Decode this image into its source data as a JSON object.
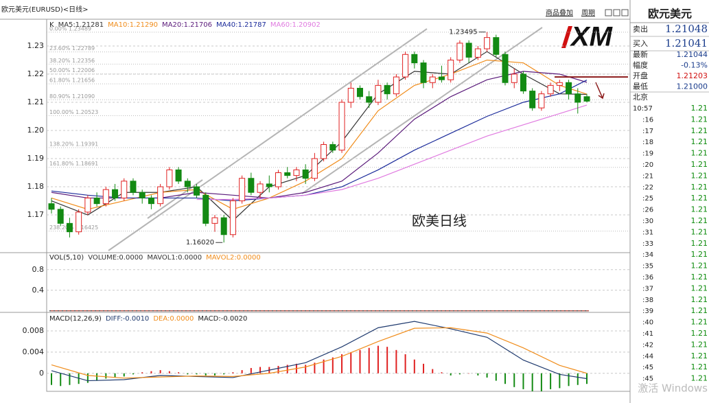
{
  "header": {
    "title": "欧元美元(EURUSD)<日线>",
    "buttons": [
      "商品叠加",
      "周期"
    ]
  },
  "logo": "XM",
  "chart_data": [
    {
      "type": "candlestick",
      "legend_label": "K",
      "ylim": [
        1.1566,
        1.2395
      ],
      "yticks": [
        1.17,
        1.18,
        1.19,
        {
          "value": 1.2,
          "label": "1.20"
        },
        1.21,
        1.22,
        1.23
      ],
      "colors": {
        "up": "#e02020",
        "down": "#138a13"
      },
      "candles": [
        [
          1.174,
          1.176,
          1.1705,
          1.172
        ],
        [
          1.172,
          1.173,
          1.166,
          1.167
        ],
        [
          1.167,
          1.169,
          1.162,
          1.164
        ],
        [
          1.164,
          1.172,
          1.163,
          1.171
        ],
        [
          1.171,
          1.177,
          1.17,
          1.176
        ],
        [
          1.176,
          1.178,
          1.173,
          1.174
        ],
        [
          1.174,
          1.18,
          1.173,
          1.179
        ],
        [
          1.179,
          1.181,
          1.175,
          1.176
        ],
        [
          1.176,
          1.183,
          1.175,
          1.182
        ],
        [
          1.182,
          1.183,
          1.177,
          1.178
        ],
        [
          1.178,
          1.179,
          1.174,
          1.176
        ],
        [
          1.176,
          1.177,
          1.172,
          1.174
        ],
        [
          1.174,
          1.181,
          1.173,
          1.18
        ],
        [
          1.18,
          1.187,
          1.179,
          1.186
        ],
        [
          1.186,
          1.187,
          1.181,
          1.182
        ],
        [
          1.182,
          1.183,
          1.178,
          1.18
        ],
        [
          1.18,
          1.181,
          1.176,
          1.177
        ],
        [
          1.177,
          1.178,
          1.166,
          1.167
        ],
        [
          1.167,
          1.17,
          1.164,
          1.169
        ],
        [
          1.169,
          1.17,
          1.1602,
          1.163
        ],
        [
          1.163,
          1.176,
          1.162,
          1.175
        ],
        [
          1.175,
          1.184,
          1.174,
          1.183
        ],
        [
          1.183,
          1.185,
          1.177,
          1.178
        ],
        [
          1.178,
          1.182,
          1.176,
          1.181
        ],
        [
          1.181,
          1.184,
          1.178,
          1.18
        ],
        [
          1.18,
          1.186,
          1.179,
          1.185
        ],
        [
          1.185,
          1.187,
          1.183,
          1.184
        ],
        [
          1.184,
          1.187,
          1.182,
          1.186
        ],
        [
          1.186,
          1.188,
          1.181,
          1.183
        ],
        [
          1.183,
          1.192,
          1.182,
          1.19
        ],
        [
          1.19,
          1.196,
          1.189,
          1.195
        ],
        [
          1.195,
          1.196,
          1.192,
          1.193
        ],
        [
          1.193,
          1.211,
          1.192,
          1.21
        ],
        [
          1.21,
          1.217,
          1.208,
          1.215
        ],
        [
          1.215,
          1.216,
          1.211,
          1.212
        ],
        [
          1.212,
          1.214,
          1.208,
          1.21
        ],
        [
          1.21,
          1.218,
          1.209,
          1.216
        ],
        [
          1.216,
          1.217,
          1.211,
          1.213
        ],
        [
          1.213,
          1.22,
          1.212,
          1.219
        ],
        [
          1.219,
          1.228,
          1.218,
          1.227
        ],
        [
          1.227,
          1.228,
          1.222,
          1.224
        ],
        [
          1.224,
          1.225,
          1.215,
          1.217
        ],
        [
          1.217,
          1.22,
          1.215,
          1.219
        ],
        [
          1.219,
          1.223,
          1.217,
          1.218
        ],
        [
          1.218,
          1.226,
          1.217,
          1.225
        ],
        [
          1.225,
          1.232,
          1.224,
          1.231
        ],
        [
          1.231,
          1.232,
          1.224,
          1.226
        ],
        [
          1.226,
          1.23,
          1.225,
          1.229
        ],
        [
          1.229,
          1.23495,
          1.228,
          1.233
        ],
        [
          1.233,
          1.234,
          1.226,
          1.227
        ],
        [
          1.227,
          1.228,
          1.216,
          1.217
        ],
        [
          1.217,
          1.222,
          1.215,
          1.22
        ],
        [
          1.22,
          1.221,
          1.213,
          1.214
        ],
        [
          1.214,
          1.215,
          1.207,
          1.208
        ],
        [
          1.208,
          1.214,
          1.207,
          1.213
        ],
        [
          1.213,
          1.217,
          1.212,
          1.216
        ],
        [
          1.216,
          1.218,
          1.214,
          1.217
        ],
        [
          1.217,
          1.218,
          1.211,
          1.213
        ],
        [
          1.213,
          1.215,
          1.206,
          1.21
        ],
        [
          1.212,
          1.213,
          1.21,
          1.2104
        ]
      ],
      "moving_averages": [
        {
          "name": "MA5:1.21281",
          "color": "#333333",
          "x": [
            0,
            4,
            8,
            12,
            16,
            20,
            24,
            28,
            32,
            36,
            40,
            44,
            48,
            52,
            56,
            59
          ],
          "values": [
            1.175,
            1.17,
            1.178,
            1.178,
            1.18,
            1.168,
            1.18,
            1.184,
            1.196,
            1.213,
            1.221,
            1.22,
            1.228,
            1.22,
            1.213,
            1.2128
          ]
        },
        {
          "name": "MA10:1.21290",
          "color": "#f08c1a",
          "x": [
            0,
            4,
            8,
            12,
            16,
            20,
            24,
            28,
            32,
            36,
            40,
            44,
            48,
            52,
            56,
            59
          ],
          "values": [
            1.176,
            1.172,
            1.175,
            1.178,
            1.179,
            1.172,
            1.176,
            1.182,
            1.19,
            1.207,
            1.216,
            1.22,
            1.225,
            1.224,
            1.216,
            1.2129
          ]
        },
        {
          "name": "MA20:1.21706",
          "color": "#5a1a7a",
          "x": [
            0,
            4,
            8,
            12,
            16,
            20,
            24,
            28,
            32,
            36,
            40,
            44,
            48,
            52,
            56,
            59
          ],
          "values": [
            1.178,
            1.176,
            1.176,
            1.176,
            1.178,
            1.177,
            1.176,
            1.178,
            1.182,
            1.192,
            1.204,
            1.212,
            1.218,
            1.221,
            1.22,
            1.2171
          ]
        },
        {
          "name": "MA40:1.21787",
          "color": "#1a2a9a",
          "x": [
            0,
            4,
            8,
            12,
            16,
            20,
            24,
            28,
            32,
            36,
            40,
            44,
            48,
            52,
            56,
            59
          ],
          "values": [
            1.1785,
            1.177,
            1.176,
            1.176,
            1.176,
            1.175,
            1.176,
            1.177,
            1.18,
            1.186,
            1.193,
            1.199,
            1.205,
            1.21,
            1.213,
            1.2179
          ]
        },
        {
          "name": "MA60:1.20902",
          "color": "#e07ae0",
          "x": [
            16,
            20,
            24,
            28,
            32,
            36,
            40,
            44,
            48,
            52,
            56,
            59
          ],
          "values": [
            1.1755,
            1.1755,
            1.176,
            1.177,
            1.179,
            1.183,
            1.188,
            1.193,
            1.198,
            1.202,
            1.206,
            1.209
          ]
        }
      ],
      "fib_levels": [
        {
          "value": 1.23489,
          "label": "0.00% 1.23489"
        },
        {
          "value": 1.22789,
          "label": "23.60% 1.22789"
        },
        {
          "value": 1.22356,
          "label": "38.20% 1.22356"
        },
        {
          "value": 1.22006,
          "label": "50.00% 1.22006"
        },
        {
          "value": 1.21656,
          "label": "61.80% 1.21656"
        },
        {
          "value": 1.2109,
          "label": "80.90% 1.21090"
        },
        {
          "value": 1.20523,
          "label": "100.00% 1.20523"
        },
        {
          "value": 1.19391,
          "label": "138.20% 1.19391"
        },
        {
          "value": 1.18691,
          "label": "161.80% 1.18691"
        },
        {
          "value": 1.16425,
          "label": "238.20% 1.16425"
        }
      ],
      "annotations": [
        {
          "x": 48,
          "value": 1.23495,
          "label": "1.23495"
        },
        {
          "x": 19,
          "value": 1.1602,
          "label": "1.16020"
        }
      ],
      "reference_line": {
        "value": 1.219,
        "color": "#8b1a1a"
      },
      "caption": "欧美日线"
    },
    {
      "type": "volume",
      "legend_label": "VOL(5,10)",
      "ylim": [
        -0.03,
        1.13
      ],
      "yticks": [
        0.4,
        0.8
      ],
      "series": [
        {
          "name": "VOLUME:0.0000",
          "value": 0,
          "color": "#333333"
        },
        {
          "name": "MAVOL1:0.0000",
          "value": 0,
          "color": "#333333"
        },
        {
          "name": "MAVOL2:0.0000",
          "value": 0,
          "color": "#f08c1a"
        }
      ]
    },
    {
      "type": "macd",
      "legend_label": "MACD(12,26,9)",
      "ylim": [
        -0.0034,
        0.0115
      ],
      "yticks": [
        0,
        0.004,
        0.008
      ],
      "series": [
        {
          "name": "DIFF:-0.0010",
          "color": "#1f3a6e",
          "x": [
            0,
            4,
            8,
            12,
            16,
            20,
            24,
            28,
            32,
            36,
            40,
            44,
            48,
            52,
            56,
            59
          ],
          "values": [
            0.0005,
            -0.0014,
            -0.0012,
            -0.0004,
            -0.0006,
            -0.0008,
            0.0006,
            0.002,
            0.005,
            0.0086,
            0.0098,
            0.0084,
            0.0068,
            0.0025,
            -0.0002,
            -0.001
          ]
        },
        {
          "name": "DEA:0.0000",
          "color": "#f08c1a",
          "x": [
            0,
            4,
            8,
            12,
            16,
            20,
            24,
            28,
            32,
            36,
            40,
            44,
            48,
            52,
            56,
            59
          ],
          "values": [
            0.0016,
            -0.0004,
            -0.0009,
            -0.0007,
            -0.0005,
            -0.0006,
            0.0,
            0.0012,
            0.0032,
            0.006,
            0.0085,
            0.0086,
            0.0076,
            0.0048,
            0.0015,
            0.0
          ]
        }
      ],
      "histogram": {
        "name": "MACD:-0.0020",
        "up_color": "#e02020",
        "down_color": "#138a13",
        "values": [
          -0.0022,
          -0.0024,
          -0.0022,
          -0.002,
          -0.0018,
          -0.0014,
          -0.001,
          -0.0008,
          -0.0006,
          -0.0002,
          0.0002,
          0.0004,
          0.0006,
          0.0004,
          0.0002,
          -0.0002,
          -0.0002,
          -0.0004,
          -0.0004,
          -0.0002,
          0.0002,
          0.0006,
          0.001,
          0.0012,
          0.0012,
          0.0014,
          0.0016,
          0.0018,
          0.0016,
          0.002,
          0.0026,
          0.003,
          0.0036,
          0.004,
          0.0044,
          0.0048,
          0.0052,
          0.005,
          0.0044,
          0.0036,
          0.0026,
          0.0018,
          0.0008,
          0.0002,
          -0.0004,
          -0.0002,
          0.0,
          -0.0004,
          -0.0008,
          -0.0014,
          -0.002,
          -0.0026,
          -0.003,
          -0.0034,
          -0.0034,
          -0.003,
          -0.0028,
          -0.0024,
          -0.0022,
          -0.002
        ]
      }
    }
  ],
  "sidebar": {
    "title": "欧元美元",
    "big_quotes": [
      {
        "label": "卖出",
        "value": "1.21048"
      },
      {
        "label": "买入",
        "value": "1.21041"
      }
    ],
    "quotes": [
      {
        "label": "最新",
        "value": "1.21044",
        "color": "#1a3c8c"
      },
      {
        "label": "幅度",
        "value": "-0.13%",
        "color": "#1a3c8c"
      },
      {
        "label": "开盘",
        "value": "1.21203",
        "color": "#d01010"
      },
      {
        "label": "最低",
        "value": "1.21000",
        "color": "#1a3c8c"
      }
    ],
    "city": "北京",
    "ticks": [
      {
        "time": "10:57",
        "price": "1.21"
      },
      {
        "time": ":16",
        "price": "1.21"
      },
      {
        "time": ":17",
        "price": "1.21"
      },
      {
        "time": ":18",
        "price": "1.21"
      },
      {
        "time": ":19",
        "price": "1.21"
      },
      {
        "time": ":20",
        "price": "1.21"
      },
      {
        "time": ":21",
        "price": "1.21"
      },
      {
        "time": ":22",
        "price": "1.21"
      },
      {
        "time": ":25",
        "price": "1.21"
      },
      {
        "time": ":26",
        "price": "1.21"
      },
      {
        "time": ":30",
        "price": "1.21"
      },
      {
        "time": ":31",
        "price": "1.21"
      },
      {
        "time": ":33",
        "price": "1.21"
      },
      {
        "time": ":34",
        "price": "1.21"
      },
      {
        "time": ":35",
        "price": "1.21"
      },
      {
        "time": ":36",
        "price": "1.21"
      },
      {
        "time": ":37",
        "price": "1.21"
      },
      {
        "time": ":38",
        "price": "1.21"
      },
      {
        "time": ":39",
        "price": "1.21"
      },
      {
        "time": ":40",
        "price": "1.21"
      },
      {
        "time": ":41",
        "price": "1.21"
      },
      {
        "time": ":42",
        "price": "1.21"
      },
      {
        "time": ":44",
        "price": "1.21"
      },
      {
        "time": ":45",
        "price": "1.21"
      },
      {
        "time": ":45",
        "price": "1.21"
      }
    ]
  },
  "watermark": "激活 Windows"
}
